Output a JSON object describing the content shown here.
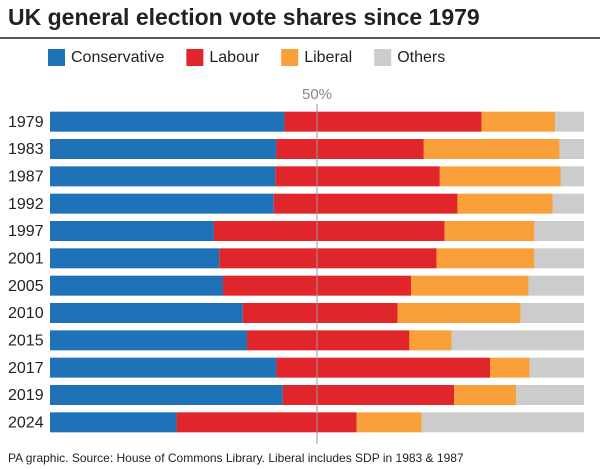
{
  "chart_data": {
    "type": "stacked_barh",
    "title": "UK general election vote shares since 1979",
    "source": "PA graphic. Source: House of Commons Library. Liberal includes SDP in 1983 & 1987",
    "categories": [
      "1979",
      "1983",
      "1987",
      "1992",
      "1997",
      "2001",
      "2005",
      "2010",
      "2015",
      "2017",
      "2019",
      "2024"
    ],
    "series": [
      {
        "name": "Conservative",
        "color": "#1f72b8",
        "values": [
          43.9,
          42.4,
          42.2,
          41.9,
          30.7,
          31.7,
          32.4,
          36.1,
          36.9,
          42.4,
          43.6,
          23.7
        ]
      },
      {
        "name": "Labour",
        "color": "#e0262b",
        "values": [
          36.9,
          27.6,
          30.8,
          34.4,
          43.2,
          40.7,
          35.2,
          29.0,
          30.4,
          40.0,
          32.1,
          33.7
        ]
      },
      {
        "name": "Liberal",
        "color": "#f9a03a",
        "values": [
          13.8,
          25.4,
          22.6,
          17.8,
          16.8,
          18.3,
          22.0,
          23.0,
          7.9,
          7.4,
          11.6,
          12.2
        ]
      },
      {
        "name": "Others",
        "color": "#cccccc",
        "values": [
          5.4,
          4.6,
          4.4,
          5.9,
          9.3,
          9.3,
          10.4,
          11.9,
          24.8,
          10.2,
          12.7,
          30.4
        ]
      }
    ],
    "xlim": [
      0,
      100
    ],
    "xticks": [
      {
        "value": 50,
        "label": "50%"
      }
    ],
    "grid": true,
    "legend": "top"
  }
}
